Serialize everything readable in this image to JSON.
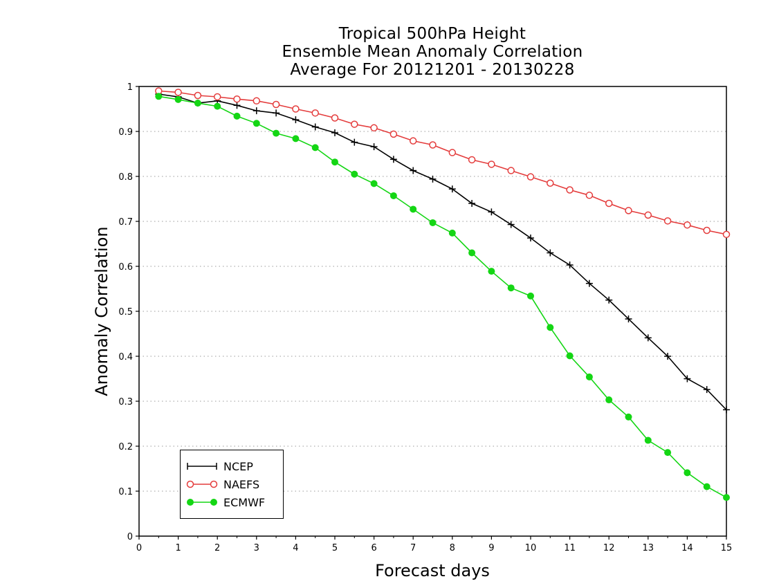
{
  "chart_data": {
    "type": "line",
    "title": [
      "Tropical 500hPa Height",
      "Ensemble Mean Anomaly Correlation",
      "Average For 20121201 - 20130228"
    ],
    "xlabel": "Forecast days",
    "ylabel": "Anomaly Correlation",
    "xlim": [
      0,
      15
    ],
    "ylim": [
      0,
      1
    ],
    "xticks": [
      "0",
      "1",
      "2",
      "3",
      "4",
      "5",
      "6",
      "7",
      "8",
      "9",
      "10",
      "11",
      "12",
      "13",
      "14",
      "15"
    ],
    "yticks": [
      "0",
      "0.1",
      "0.2",
      "0.3",
      "0.4",
      "0.5",
      "0.6",
      "0.7",
      "0.8",
      "0.9",
      "1"
    ],
    "grid": "dotted horizontal",
    "legend_position": "bottom-left",
    "x": [
      0.5,
      1,
      1.5,
      2,
      2.5,
      3,
      3.5,
      4,
      4.5,
      5,
      5.5,
      6,
      6.5,
      7,
      7.5,
      8,
      8.5,
      9,
      9.5,
      10,
      10.5,
      11,
      11.5,
      12,
      12.5,
      13,
      13.5,
      14,
      14.5,
      15
    ],
    "series": [
      {
        "name": "NCEP",
        "color": "#000000",
        "marker": "plus",
        "values": [
          0.983,
          0.977,
          0.963,
          0.968,
          0.958,
          0.946,
          0.941,
          0.926,
          0.91,
          0.897,
          0.876,
          0.866,
          0.838,
          0.813,
          0.794,
          0.772,
          0.74,
          0.721,
          0.693,
          0.663,
          0.63,
          0.603,
          0.562,
          0.525,
          0.483,
          0.441,
          0.4,
          0.35,
          0.326,
          0.281
        ]
      },
      {
        "name": "NAEFS",
        "color": "#e43c3c",
        "marker": "open-circle",
        "values": [
          0.99,
          0.987,
          0.98,
          0.977,
          0.972,
          0.968,
          0.96,
          0.95,
          0.941,
          0.93,
          0.916,
          0.908,
          0.894,
          0.879,
          0.87,
          0.853,
          0.837,
          0.827,
          0.813,
          0.799,
          0.785,
          0.77,
          0.758,
          0.74,
          0.724,
          0.714,
          0.701,
          0.692,
          0.68,
          0.671
        ]
      },
      {
        "name": "ECMWF",
        "color": "#14d614",
        "marker": "filled-circle",
        "values": [
          0.978,
          0.971,
          0.963,
          0.956,
          0.934,
          0.918,
          0.896,
          0.884,
          0.864,
          0.832,
          0.805,
          0.784,
          0.757,
          0.727,
          0.697,
          0.674,
          0.63,
          0.589,
          0.552,
          0.534,
          0.464,
          0.401,
          0.354,
          0.303,
          0.265,
          0.213,
          0.186,
          0.141,
          0.11,
          0.086
        ]
      }
    ]
  }
}
